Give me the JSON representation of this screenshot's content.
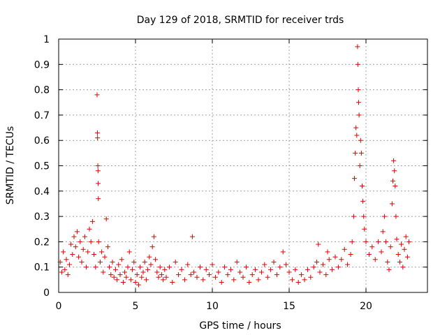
{
  "chart_data": {
    "type": "scatter",
    "title": "Day 129 of 2018, SRMTID for receiver trds",
    "xlabel": "GPS time / hours",
    "ylabel": "SRMTID / TECUs",
    "xlim": [
      0,
      24
    ],
    "ylim": [
      0,
      1
    ],
    "xticks": [
      "0",
      "5",
      "10",
      "15",
      "20"
    ],
    "yticks": [
      "0",
      "0.1",
      "0.2",
      "0.3",
      "0.4",
      "0.5",
      "0.6",
      "0.7",
      "0.8",
      "0.9",
      "1"
    ],
    "xtick_values": [
      0,
      5,
      10,
      15,
      20
    ],
    "ytick_values": [
      0,
      0.1,
      0.2,
      0.3,
      0.4,
      0.5,
      0.6,
      0.7,
      0.8,
      0.9,
      1
    ],
    "grid": true,
    "marker": "+",
    "series": [
      {
        "name": "SRMTID",
        "color": "#e00000",
        "points": [
          [
            0.1,
            0.12
          ],
          [
            0.2,
            0.08
          ],
          [
            0.3,
            0.16
          ],
          [
            0.4,
            0.09
          ],
          [
            0.5,
            0.13
          ],
          [
            0.6,
            0.07
          ],
          [
            0.7,
            0.11
          ],
          [
            0.8,
            0.19
          ],
          [
            0.9,
            0.15
          ],
          [
            1.0,
            0.22
          ],
          [
            1.1,
            0.18
          ],
          [
            1.2,
            0.24
          ],
          [
            1.3,
            0.14
          ],
          [
            1.4,
            0.2
          ],
          [
            1.5,
            0.12
          ],
          [
            1.6,
            0.17
          ],
          [
            1.7,
            0.22
          ],
          [
            1.8,
            0.1
          ],
          [
            1.9,
            0.16
          ],
          [
            2.0,
            0.25
          ],
          [
            2.1,
            0.2
          ],
          [
            2.2,
            0.28
          ],
          [
            2.3,
            0.15
          ],
          [
            2.4,
            0.1
          ],
          [
            2.5,
            0.78
          ],
          [
            2.52,
            0.63
          ],
          [
            2.53,
            0.61
          ],
          [
            2.55,
            0.5
          ],
          [
            2.56,
            0.48
          ],
          [
            2.57,
            0.43
          ],
          [
            2.58,
            0.37
          ],
          [
            2.6,
            0.2
          ],
          [
            2.7,
            0.12
          ],
          [
            2.8,
            0.16
          ],
          [
            2.9,
            0.08
          ],
          [
            3.0,
            0.14
          ],
          [
            3.1,
            0.29
          ],
          [
            3.2,
            0.18
          ],
          [
            3.3,
            0.1
          ],
          [
            3.4,
            0.07
          ],
          [
            3.5,
            0.12
          ],
          [
            3.6,
            0.06
          ],
          [
            3.7,
            0.09
          ],
          [
            3.8,
            0.05
          ],
          [
            3.9,
            0.11
          ],
          [
            4.0,
            0.07
          ],
          [
            4.1,
            0.13
          ],
          [
            4.2,
            0.04
          ],
          [
            4.3,
            0.08
          ],
          [
            4.4,
            0.06
          ],
          [
            4.5,
            0.1
          ],
          [
            4.6,
            0.16
          ],
          [
            4.7,
            0.05
          ],
          [
            4.8,
            0.09
          ],
          [
            4.9,
            0.12
          ],
          [
            5.0,
            0.04
          ],
          [
            5.1,
            0.07
          ],
          [
            5.2,
            0.03
          ],
          [
            5.3,
            0.1
          ],
          [
            5.4,
            0.06
          ],
          [
            5.5,
            0.08
          ],
          [
            5.6,
            0.12
          ],
          [
            5.7,
            0.05
          ],
          [
            5.8,
            0.09
          ],
          [
            5.9,
            0.14
          ],
          [
            6.0,
            0.11
          ],
          [
            6.1,
            0.18
          ],
          [
            6.2,
            0.22
          ],
          [
            6.3,
            0.13
          ],
          [
            6.4,
            0.08
          ],
          [
            6.5,
            0.06
          ],
          [
            6.6,
            0.1
          ],
          [
            6.7,
            0.07
          ],
          [
            6.8,
            0.05
          ],
          [
            6.9,
            0.09
          ],
          [
            7.0,
            0.06
          ],
          [
            7.2,
            0.1
          ],
          [
            7.4,
            0.04
          ],
          [
            7.6,
            0.12
          ],
          [
            7.8,
            0.07
          ],
          [
            8.0,
            0.09
          ],
          [
            8.2,
            0.05
          ],
          [
            8.4,
            0.11
          ],
          [
            8.6,
            0.07
          ],
          [
            8.7,
            0.22
          ],
          [
            8.8,
            0.08
          ],
          [
            9.0,
            0.06
          ],
          [
            9.2,
            0.1
          ],
          [
            9.4,
            0.05
          ],
          [
            9.6,
            0.09
          ],
          [
            9.8,
            0.07
          ],
          [
            10.0,
            0.11
          ],
          [
            10.2,
            0.06
          ],
          [
            10.4,
            0.08
          ],
          [
            10.6,
            0.04
          ],
          [
            10.8,
            0.1
          ],
          [
            11.0,
            0.07
          ],
          [
            11.2,
            0.09
          ],
          [
            11.4,
            0.05
          ],
          [
            11.6,
            0.12
          ],
          [
            11.8,
            0.08
          ],
          [
            12.0,
            0.06
          ],
          [
            12.2,
            0.1
          ],
          [
            12.4,
            0.04
          ],
          [
            12.6,
            0.07
          ],
          [
            12.8,
            0.09
          ],
          [
            13.0,
            0.05
          ],
          [
            13.2,
            0.08
          ],
          [
            13.4,
            0.11
          ],
          [
            13.6,
            0.06
          ],
          [
            13.8,
            0.09
          ],
          [
            14.0,
            0.12
          ],
          [
            14.2,
            0.07
          ],
          [
            14.4,
            0.1
          ],
          [
            14.6,
            0.16
          ],
          [
            14.8,
            0.11
          ],
          [
            15.0,
            0.08
          ],
          [
            15.2,
            0.05
          ],
          [
            15.4,
            0.09
          ],
          [
            15.6,
            0.04
          ],
          [
            15.8,
            0.07
          ],
          [
            16.0,
            0.05
          ],
          [
            16.2,
            0.09
          ],
          [
            16.4,
            0.06
          ],
          [
            16.6,
            0.1
          ],
          [
            16.8,
            0.12
          ],
          [
            16.9,
            0.19
          ],
          [
            17.0,
            0.08
          ],
          [
            17.2,
            0.11
          ],
          [
            17.4,
            0.07
          ],
          [
            17.5,
            0.16
          ],
          [
            17.6,
            0.13
          ],
          [
            17.8,
            0.09
          ],
          [
            18.0,
            0.14
          ],
          [
            18.2,
            0.1
          ],
          [
            18.4,
            0.13
          ],
          [
            18.6,
            0.17
          ],
          [
            18.8,
            0.11
          ],
          [
            19.0,
            0.15
          ],
          [
            19.1,
            0.2
          ],
          [
            19.2,
            0.3
          ],
          [
            19.25,
            0.45
          ],
          [
            19.3,
            0.55
          ],
          [
            19.35,
            0.65
          ],
          [
            19.4,
            0.62
          ],
          [
            19.45,
            0.97
          ],
          [
            19.47,
            0.9
          ],
          [
            19.5,
            0.8
          ],
          [
            19.52,
            0.75
          ],
          [
            19.55,
            0.7
          ],
          [
            19.6,
            0.5
          ],
          [
            19.65,
            0.6
          ],
          [
            19.7,
            0.55
          ],
          [
            19.75,
            0.42
          ],
          [
            19.8,
            0.36
          ],
          [
            19.85,
            0.3
          ],
          [
            19.9,
            0.25
          ],
          [
            20.0,
            0.2
          ],
          [
            20.2,
            0.15
          ],
          [
            20.4,
            0.18
          ],
          [
            20.6,
            0.13
          ],
          [
            20.8,
            0.2
          ],
          [
            21.0,
            0.16
          ],
          [
            21.1,
            0.24
          ],
          [
            21.2,
            0.3
          ],
          [
            21.3,
            0.2
          ],
          [
            21.4,
            0.12
          ],
          [
            21.5,
            0.09
          ],
          [
            21.6,
            0.18
          ],
          [
            21.7,
            0.35
          ],
          [
            21.75,
            0.44
          ],
          [
            21.8,
            0.52
          ],
          [
            21.85,
            0.48
          ],
          [
            21.9,
            0.42
          ],
          [
            21.95,
            0.3
          ],
          [
            22.0,
            0.21
          ],
          [
            22.1,
            0.15
          ],
          [
            22.2,
            0.12
          ],
          [
            22.3,
            0.19
          ],
          [
            22.4,
            0.1
          ],
          [
            22.5,
            0.17
          ],
          [
            22.6,
            0.22
          ],
          [
            22.7,
            0.14
          ],
          [
            22.8,
            0.2
          ]
        ]
      }
    ]
  }
}
